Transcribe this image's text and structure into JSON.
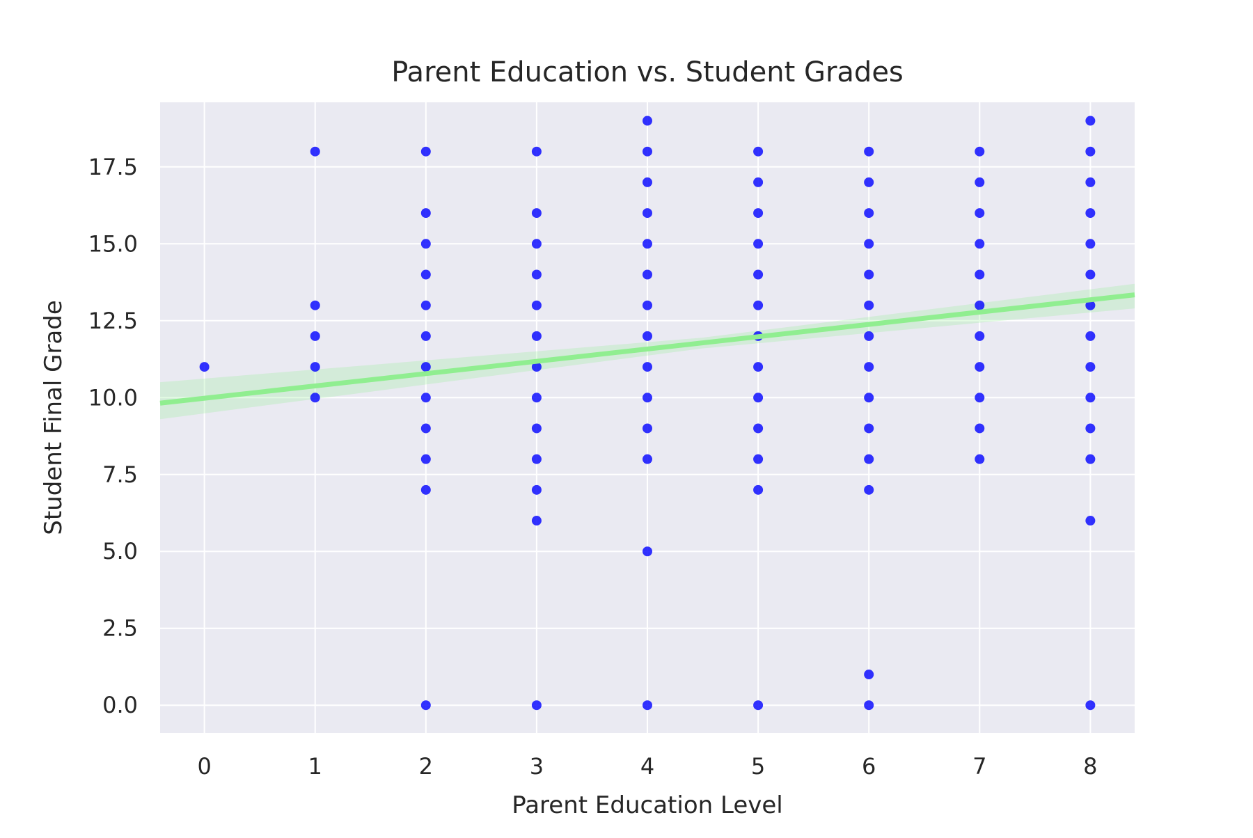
{
  "chart_data": {
    "type": "scatter",
    "title": "Parent Education vs. Student Grades",
    "xlabel": "Parent Education Level",
    "ylabel": "Student Final Grade",
    "xlim": [
      -0.4,
      8.4
    ],
    "ylim": [
      -0.9,
      19.6
    ],
    "x_ticks": [
      0,
      1,
      2,
      3,
      4,
      5,
      6,
      7,
      8
    ],
    "y_ticks": [
      0.0,
      2.5,
      5.0,
      7.5,
      10.0,
      12.5,
      15.0,
      17.5
    ],
    "grid": true,
    "colors": {
      "points": "#0000ff",
      "regression": "#90ee90",
      "background": "#eaeaf2",
      "grid": "#ffffff"
    },
    "points": [
      {
        "x": 0,
        "y": 11
      },
      {
        "x": 1,
        "y": 18
      },
      {
        "x": 1,
        "y": 13
      },
      {
        "x": 1,
        "y": 12
      },
      {
        "x": 1,
        "y": 11
      },
      {
        "x": 1,
        "y": 10
      },
      {
        "x": 2,
        "y": 18
      },
      {
        "x": 2,
        "y": 16
      },
      {
        "x": 2,
        "y": 15
      },
      {
        "x": 2,
        "y": 14
      },
      {
        "x": 2,
        "y": 13
      },
      {
        "x": 2,
        "y": 12
      },
      {
        "x": 2,
        "y": 11
      },
      {
        "x": 2,
        "y": 10
      },
      {
        "x": 2,
        "y": 9
      },
      {
        "x": 2,
        "y": 8
      },
      {
        "x": 2,
        "y": 7
      },
      {
        "x": 2,
        "y": 0
      },
      {
        "x": 3,
        "y": 18
      },
      {
        "x": 3,
        "y": 16
      },
      {
        "x": 3,
        "y": 15
      },
      {
        "x": 3,
        "y": 14
      },
      {
        "x": 3,
        "y": 13
      },
      {
        "x": 3,
        "y": 12
      },
      {
        "x": 3,
        "y": 11
      },
      {
        "x": 3,
        "y": 10
      },
      {
        "x": 3,
        "y": 9
      },
      {
        "x": 3,
        "y": 8
      },
      {
        "x": 3,
        "y": 7
      },
      {
        "x": 3,
        "y": 6
      },
      {
        "x": 3,
        "y": 0
      },
      {
        "x": 4,
        "y": 19
      },
      {
        "x": 4,
        "y": 18
      },
      {
        "x": 4,
        "y": 17
      },
      {
        "x": 4,
        "y": 16
      },
      {
        "x": 4,
        "y": 15
      },
      {
        "x": 4,
        "y": 14
      },
      {
        "x": 4,
        "y": 13
      },
      {
        "x": 4,
        "y": 12
      },
      {
        "x": 4,
        "y": 11
      },
      {
        "x": 4,
        "y": 10
      },
      {
        "x": 4,
        "y": 9
      },
      {
        "x": 4,
        "y": 8
      },
      {
        "x": 4,
        "y": 5
      },
      {
        "x": 4,
        "y": 0
      },
      {
        "x": 5,
        "y": 18
      },
      {
        "x": 5,
        "y": 17
      },
      {
        "x": 5,
        "y": 16
      },
      {
        "x": 5,
        "y": 15
      },
      {
        "x": 5,
        "y": 14
      },
      {
        "x": 5,
        "y": 13
      },
      {
        "x": 5,
        "y": 12
      },
      {
        "x": 5,
        "y": 11
      },
      {
        "x": 5,
        "y": 10
      },
      {
        "x": 5,
        "y": 9
      },
      {
        "x": 5,
        "y": 8
      },
      {
        "x": 5,
        "y": 7
      },
      {
        "x": 5,
        "y": 0
      },
      {
        "x": 6,
        "y": 18
      },
      {
        "x": 6,
        "y": 17
      },
      {
        "x": 6,
        "y": 16
      },
      {
        "x": 6,
        "y": 15
      },
      {
        "x": 6,
        "y": 14
      },
      {
        "x": 6,
        "y": 13
      },
      {
        "x": 6,
        "y": 12
      },
      {
        "x": 6,
        "y": 11
      },
      {
        "x": 6,
        "y": 10
      },
      {
        "x": 6,
        "y": 9
      },
      {
        "x": 6,
        "y": 8
      },
      {
        "x": 6,
        "y": 7
      },
      {
        "x": 6,
        "y": 1
      },
      {
        "x": 6,
        "y": 0
      },
      {
        "x": 7,
        "y": 18
      },
      {
        "x": 7,
        "y": 17
      },
      {
        "x": 7,
        "y": 16
      },
      {
        "x": 7,
        "y": 15
      },
      {
        "x": 7,
        "y": 14
      },
      {
        "x": 7,
        "y": 13
      },
      {
        "x": 7,
        "y": 12
      },
      {
        "x": 7,
        "y": 11
      },
      {
        "x": 7,
        "y": 10
      },
      {
        "x": 7,
        "y": 9
      },
      {
        "x": 7,
        "y": 8
      },
      {
        "x": 8,
        "y": 19
      },
      {
        "x": 8,
        "y": 18
      },
      {
        "x": 8,
        "y": 17
      },
      {
        "x": 8,
        "y": 16
      },
      {
        "x": 8,
        "y": 15
      },
      {
        "x": 8,
        "y": 14
      },
      {
        "x": 8,
        "y": 13
      },
      {
        "x": 8,
        "y": 12
      },
      {
        "x": 8,
        "y": 11
      },
      {
        "x": 8,
        "y": 10
      },
      {
        "x": 8,
        "y": 9
      },
      {
        "x": 8,
        "y": 8
      },
      {
        "x": 8,
        "y": 6
      },
      {
        "x": 8,
        "y": 0
      }
    ],
    "regression": {
      "type": "linear",
      "intercept": 9.98,
      "slope": 0.4,
      "ci_band": [
        {
          "x": -0.4,
          "lower": 9.3,
          "upper": 10.5
        },
        {
          "x": 4.5,
          "lower": 11.6,
          "upper": 11.95
        },
        {
          "x": 8.4,
          "lower": 12.9,
          "upper": 13.7
        }
      ]
    }
  }
}
